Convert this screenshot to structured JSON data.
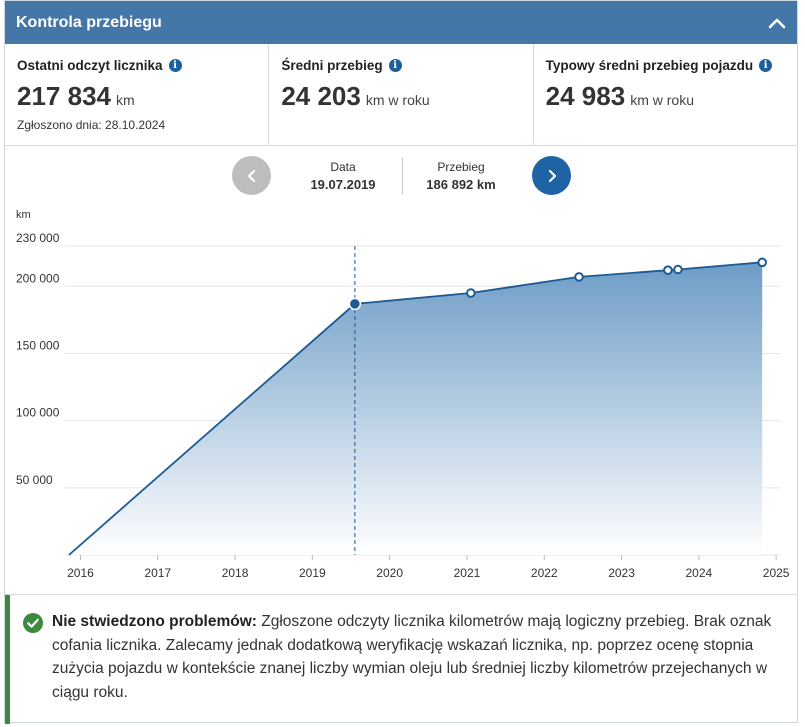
{
  "header": {
    "title": "Kontrola przebiegu",
    "toggle_icon": "chevron-up-icon"
  },
  "stats": [
    {
      "label": "Ostatni odczyt licznika",
      "value": "217 834",
      "unit": "km",
      "sub": "Zgłoszono dnia: 28.10.2024"
    },
    {
      "label": "Średni przebieg",
      "value": "24 203",
      "unit": "km w roku"
    },
    {
      "label": "Typowy średni przebieg pojazdu",
      "value": "24 983",
      "unit": "km w roku"
    }
  ],
  "nav": {
    "date_caption": "Data",
    "date_value": "19.07.2019",
    "mileage_caption": "Przebieg",
    "mileage_value": "186 892 km"
  },
  "chart_data": {
    "type": "area",
    "ylabel": "km",
    "ylim": [
      0,
      230000
    ],
    "yticks": [
      50000,
      100000,
      150000,
      200000,
      230000
    ],
    "ytick_labels": [
      "50 000",
      "100 000",
      "150 000",
      "200 000",
      "230 000"
    ],
    "xlim": [
      2015.8,
      2025.05
    ],
    "xticks": [
      2016,
      2017,
      2018,
      2019,
      2020,
      2021,
      2022,
      2023,
      2024,
      2025
    ],
    "xtick_labels": [
      "2016",
      "2017",
      "2018",
      "2019",
      "2020",
      "2021",
      "2022",
      "2023",
      "2024",
      "2025"
    ],
    "points": [
      {
        "x": 2015.85,
        "y": 0,
        "marker": false
      },
      {
        "x": 2019.55,
        "y": 186892,
        "marker": true,
        "selected": true
      },
      {
        "x": 2021.05,
        "y": 195000,
        "marker": true
      },
      {
        "x": 2022.45,
        "y": 207000,
        "marker": true
      },
      {
        "x": 2023.6,
        "y": 212000,
        "marker": true
      },
      {
        "x": 2023.73,
        "y": 212500,
        "marker": true
      },
      {
        "x": 2024.82,
        "y": 217834,
        "marker": true
      }
    ],
    "colors": {
      "line": "#1d5a94",
      "fill_top": "#6d9cc6",
      "fill_bottom": "#ffffff",
      "grid": "#e6e6e6"
    }
  },
  "banner": {
    "status_icon": "check-circle-icon",
    "bold": "Nie stwiedzono problemów:",
    "text": " Zgłoszone odczyty licznika kilometrów mają logiczny przebieg. Brak oznak cofania licznika. Zalecamy jednak dodatkową weryfikację wskazań licznika, np. poprzez ocenę stopnia zużycia pojazdu w kontekście znanej liczby wymian oleju lub średniej liczby kilometrów przejechanych w ciągu roku."
  }
}
